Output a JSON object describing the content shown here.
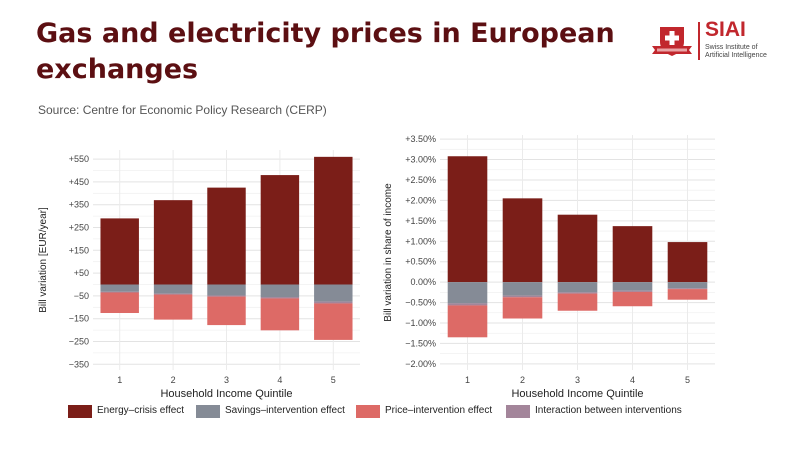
{
  "header": {
    "title": "Gas and electricity prices in European exchanges",
    "source": "Source: Centre for Economic Policy Research (CERP)"
  },
  "logo": {
    "name": "SIAI",
    "subtitle_line1": "Swiss Institute of",
    "subtitle_line2": "Artificial Intelligence",
    "colors": {
      "brand": "#c1272d"
    }
  },
  "legend": {
    "items": [
      {
        "label": "Energy–crisis effect",
        "color": "#7b1e18"
      },
      {
        "label": "Savings–intervention effect",
        "color": "#858b96"
      },
      {
        "label": "Price–intervention effect",
        "color": "#dd6a66"
      },
      {
        "label": "Interaction between interventions",
        "color": "#a3859a"
      }
    ]
  },
  "chart_data": [
    {
      "type": "bar",
      "stacked": true,
      "title": "",
      "xlabel": "Household Income Quintile",
      "ylabel": "Bill variation [EUR/year]",
      "categories": [
        "1",
        "2",
        "3",
        "4",
        "5"
      ],
      "yticks": [
        "+550",
        "+450",
        "+350",
        "+250",
        "+150",
        "+50",
        "−50",
        "−150",
        "−250",
        "−350"
      ],
      "ytick_values": [
        550,
        450,
        350,
        250,
        150,
        50,
        -50,
        -150,
        -250,
        -350
      ],
      "ylim": [
        -375,
        590
      ],
      "grid": true,
      "series": [
        {
          "name": "Energy–crisis effect",
          "values": [
            290,
            370,
            425,
            480,
            560
          ]
        },
        {
          "name": "Savings–intervention effect",
          "values": [
            -32,
            -40,
            -48,
            -55,
            -75
          ]
        },
        {
          "name": "Interaction between interventions",
          "values": [
            -3,
            -4,
            -5,
            -6,
            -8
          ]
        },
        {
          "name": "Price–intervention effect",
          "values": [
            -90,
            -110,
            -125,
            -140,
            -160
          ]
        }
      ]
    },
    {
      "type": "bar",
      "stacked": true,
      "title": "",
      "xlabel": "Household Income Quintile",
      "ylabel": "Bill variation in share of income",
      "categories": [
        "1",
        "2",
        "3",
        "4",
        "5"
      ],
      "yticks": [
        "+3.50%",
        "+3.00%",
        "+2.50%",
        "+2.00%",
        "+1.50%",
        "+1.00%",
        "+0.50%",
        "0.00%",
        "−0.50%",
        "−1.00%",
        "−1.50%",
        "−2.00%"
      ],
      "ytick_values": [
        3.5,
        3.0,
        2.5,
        2.0,
        1.5,
        1.0,
        0.5,
        0.0,
        -0.5,
        -1.0,
        -1.5,
        -2.0
      ],
      "ylim": [
        -2.15,
        3.6
      ],
      "grid": true,
      "series": [
        {
          "name": "Energy–crisis effect",
          "values": [
            3.08,
            2.05,
            1.65,
            1.37,
            0.98
          ]
        },
        {
          "name": "Savings–intervention effect",
          "values": [
            -0.52,
            -0.33,
            -0.25,
            -0.21,
            -0.15
          ]
        },
        {
          "name": "Interaction between interventions",
          "values": [
            -0.05,
            -0.04,
            -0.03,
            -0.03,
            -0.02
          ]
        },
        {
          "name": "Price–intervention effect",
          "values": [
            -0.78,
            -0.52,
            -0.42,
            -0.35,
            -0.26
          ]
        }
      ]
    }
  ]
}
